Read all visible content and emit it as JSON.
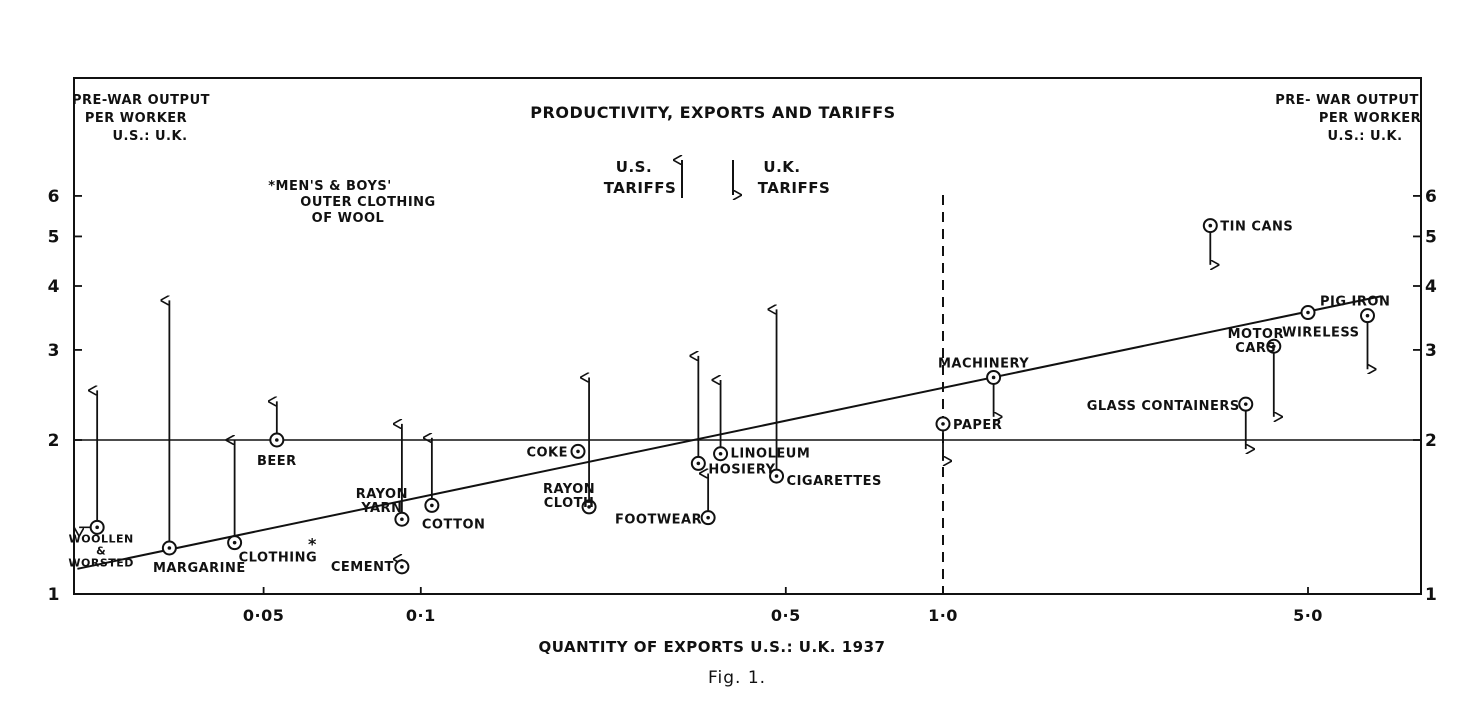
{
  "chart_data": {
    "type": "scatter",
    "title": "PRODUCTIVITY, EXPORTS AND TARIFFS",
    "xlabel": "QUANTITY OF EXPORTS U.S.: U.K. 1937",
    "ylabel_left": [
      "PRE-WAR OUTPUT",
      "PER WORKER",
      "U.S.: U.K."
    ],
    "ylabel_right": [
      "PRE- WAR OUTPUT",
      "PER WORKER",
      "U.S.: U.K."
    ],
    "caption": "Fig. 1.",
    "x_scale": "log",
    "y_scale": "log",
    "xlim": [
      0.022,
      6.9
    ],
    "ylim": [
      1,
      7
    ],
    "x_ticks": [
      {
        "value": 0.05,
        "label": "0·05"
      },
      {
        "value": 0.1,
        "label": "0·1"
      },
      {
        "value": 0.5,
        "label": "0·5"
      },
      {
        "value": 1.0,
        "label": "1·0"
      },
      {
        "value": 5.0,
        "label": "5·0"
      }
    ],
    "y_ticks": [
      {
        "value": 1,
        "label": "1"
      },
      {
        "value": 2,
        "label": "2"
      },
      {
        "value": 3,
        "label": "3"
      },
      {
        "value": 4,
        "label": "4"
      },
      {
        "value": 5,
        "label": "5"
      },
      {
        "value": 6,
        "label": "6"
      }
    ],
    "tariff_legend": {
      "us": [
        "U.S.",
        "TARIFFS"
      ],
      "uk": [
        "U.K.",
        "TARIFFS"
      ]
    },
    "asterisk_note": [
      "*MEN'S & BOYS'",
      "OUTER CLOTHING",
      "OF WOOL"
    ],
    "reference_lines": [
      {
        "kind": "horizontal",
        "y": 2
      },
      {
        "kind": "vertical",
        "x": 1.0,
        "style": "dashed"
      },
      {
        "kind": "regression",
        "from": [
          0.022,
          1.12
        ],
        "to": [
          6.9,
          3.82
        ]
      }
    ],
    "points": [
      {
        "label": [
          "WOOLLEN",
          "&",
          "WORSTED"
        ],
        "x": 0.024,
        "y": 1.35,
        "tariff_arrow": {
          "dir": "up",
          "to": 2.5
        },
        "side_arrow": "left"
      },
      {
        "label": [
          "MARGARINE"
        ],
        "x": 0.033,
        "y": 1.23,
        "tariff_arrow": {
          "dir": "up",
          "to": 3.75
        }
      },
      {
        "label": [
          "CLOTHING"
        ],
        "x": 0.044,
        "y": 1.26,
        "tariff_arrow": {
          "dir": "up",
          "to": 2.0
        }
      },
      {
        "label": [
          "BEER"
        ],
        "x": 0.053,
        "y": 2.0,
        "tariff_arrow": {
          "dir": "up",
          "to": 2.38
        }
      },
      {
        "label": [
          "*"
        ],
        "x": 0.062,
        "y": 1.25,
        "marker": "asterisk"
      },
      {
        "label": [
          "RAYON",
          "YARN"
        ],
        "x": 0.092,
        "y": 1.4,
        "tariff_arrow": {
          "dir": "up",
          "to": 2.15
        }
      },
      {
        "label": [
          "CEMENT"
        ],
        "x": 0.092,
        "y": 1.13,
        "tariff_arrow": {
          "dir": "up",
          "to": 1.17
        }
      },
      {
        "label": [
          "COTTON"
        ],
        "x": 0.105,
        "y": 1.49,
        "tariff_arrow": {
          "dir": "up",
          "to": 2.02
        }
      },
      {
        "label": [
          "COKE"
        ],
        "x": 0.2,
        "y": 1.9
      },
      {
        "label": [
          "RAYON",
          "CLOTH"
        ],
        "x": 0.21,
        "y": 1.48,
        "tariff_arrow": {
          "dir": "up",
          "to": 2.65
        }
      },
      {
        "label": [
          "HOSIERY"
        ],
        "x": 0.34,
        "y": 1.8,
        "tariff_arrow": {
          "dir": "up",
          "to": 2.92
        }
      },
      {
        "label": [
          "FOOTWEAR"
        ],
        "x": 0.355,
        "y": 1.41,
        "tariff_arrow": {
          "dir": "up",
          "to": 1.72
        }
      },
      {
        "label": [
          "LINOLEUM"
        ],
        "x": 0.375,
        "y": 1.88,
        "tariff_arrow": {
          "dir": "up",
          "to": 2.62
        }
      },
      {
        "label": [
          "CIGARETTES"
        ],
        "x": 0.48,
        "y": 1.7,
        "tariff_arrow": {
          "dir": "up",
          "to": 3.6
        }
      },
      {
        "label": [
          "PAPER"
        ],
        "x": 1.0,
        "y": 2.15,
        "tariff_arrow": {
          "dir": "down",
          "to": 1.82
        }
      },
      {
        "label": [
          "MACHINERY"
        ],
        "x": 1.25,
        "y": 2.65,
        "tariff_arrow": {
          "dir": "down",
          "to": 2.22
        }
      },
      {
        "label": [
          "TIN CANS"
        ],
        "x": 3.25,
        "y": 5.25,
        "tariff_arrow": {
          "dir": "down",
          "to": 4.4
        }
      },
      {
        "label": [
          "GLASS CONTAINERS"
        ],
        "x": 3.8,
        "y": 2.35,
        "tariff_arrow": {
          "dir": "down",
          "to": 1.92
        }
      },
      {
        "label": [
          "MOTOR",
          "CARS"
        ],
        "x": 4.3,
        "y": 3.05,
        "tariff_arrow": {
          "dir": "down",
          "to": 2.22
        }
      },
      {
        "label": [
          "PIG IRON"
        ],
        "x": 5.0,
        "y": 3.55
      },
      {
        "label": [
          "WIRELESS"
        ],
        "x": 6.5,
        "y": 3.5,
        "tariff_arrow": {
          "dir": "down",
          "to": 2.75
        }
      }
    ]
  }
}
